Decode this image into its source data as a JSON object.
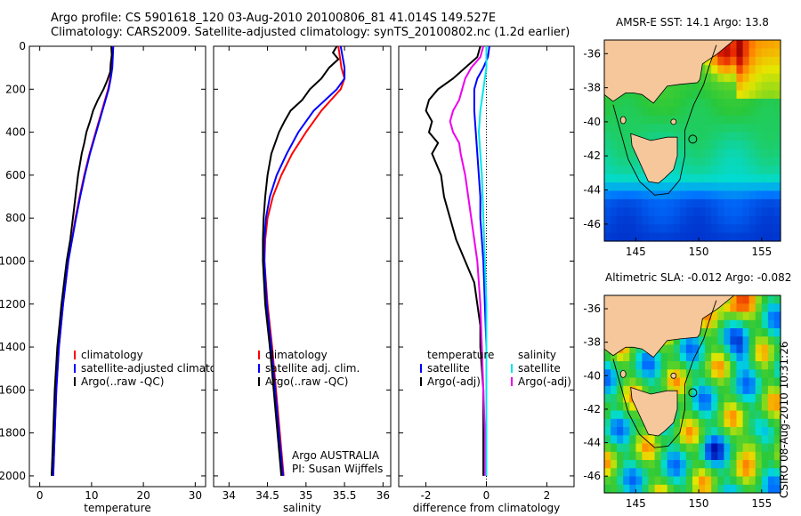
{
  "header": {
    "line1": "Argo profile: CS 5901618_120 03-Aug-2010 20100806_81 41.014S 149.527E",
    "line2": "Climatology: CARS2009. Satellite-adjusted climatology: synTS_20100802.nc (1.2d earlier)"
  },
  "map_titles": {
    "sst": "AMSR-E SST: 14.1 Argo: 13.8",
    "sla": "Altimetric SLA: -0.012 Argo: -0.082"
  },
  "stamp": "CSIRO 08-Aug-2010 10:31:26",
  "colors": {
    "climatology": "#ff0000",
    "satellite": "#0000ff",
    "argo": "#000000",
    "satellite_diff": "#00e5ee",
    "salinity_diff": "#ee00ee",
    "land": "#f5c79b"
  },
  "chart_data": [
    {
      "id": "temperature",
      "type": "line",
      "xlabel": "temperature",
      "xlim": [
        -2,
        32
      ],
      "xticks": [
        0,
        10,
        20,
        30
      ],
      "ylim": [
        2050,
        0
      ],
      "yticks": [
        0,
        200,
        400,
        600,
        800,
        1000,
        1200,
        1400,
        1600,
        1800,
        2000
      ],
      "legend": [
        "climatology",
        "satellite-adjusted climatology",
        "Argo(..raw -QC)"
      ],
      "series": [
        {
          "name": "climatology",
          "color": "climatology",
          "pressure": [
            0,
            100,
            150,
            200,
            300,
            400,
            500,
            600,
            700,
            800,
            1000,
            1200,
            1400,
            1600,
            1800,
            2000
          ],
          "values": [
            14.0,
            13.9,
            13.6,
            13.2,
            12.0,
            10.8,
            9.6,
            8.6,
            7.7,
            6.9,
            5.5,
            4.5,
            3.7,
            3.2,
            2.9,
            2.6
          ]
        },
        {
          "name": "satellite-adjusted climatology",
          "color": "satellite",
          "pressure": [
            0,
            100,
            150,
            200,
            300,
            400,
            500,
            600,
            700,
            800,
            1000,
            1200,
            1400,
            1600,
            1800,
            2000
          ],
          "values": [
            14.2,
            14.0,
            13.7,
            13.3,
            12.1,
            10.9,
            9.7,
            8.7,
            7.8,
            7.0,
            5.5,
            4.5,
            3.7,
            3.2,
            2.9,
            2.6
          ]
        },
        {
          "name": "Argo(..raw -QC)",
          "color": "argo",
          "pressure": [
            0,
            40,
            80,
            120,
            160,
            200,
            250,
            300,
            350,
            400,
            450,
            500,
            600,
            700,
            800,
            900,
            1000,
            1200,
            1400,
            1600,
            1800,
            2000
          ],
          "values": [
            13.8,
            13.9,
            13.7,
            13.6,
            13.0,
            12.3,
            11.2,
            10.3,
            9.7,
            9.0,
            8.6,
            8.1,
            7.4,
            6.9,
            6.4,
            5.9,
            5.2,
            4.2,
            3.4,
            2.9,
            2.6,
            2.3
          ]
        }
      ]
    },
    {
      "id": "salinity",
      "type": "line",
      "xlabel": "salinity",
      "xlim": [
        33.8,
        36.1
      ],
      "xticks": [
        34,
        34.5,
        35,
        35.5,
        36
      ],
      "ylim": [
        2050,
        0
      ],
      "legend": [
        "climatology",
        "satellite adj. clim.",
        "Argo(..raw -QC)"
      ],
      "annotation": [
        "Argo AUSTRALIA",
        "PI: Susan Wijffels"
      ],
      "series": [
        {
          "name": "climatology",
          "color": "climatology",
          "pressure": [
            0,
            100,
            150,
            200,
            300,
            400,
            500,
            600,
            700,
            800,
            900,
            1000,
            1200,
            1400,
            1600,
            1800,
            2000
          ],
          "values": [
            35.42,
            35.46,
            35.5,
            35.45,
            35.2,
            35.0,
            34.82,
            34.68,
            34.57,
            34.5,
            34.47,
            34.46,
            34.5,
            34.56,
            34.61,
            34.66,
            34.71
          ]
        },
        {
          "name": "satellite adj. clim.",
          "color": "satellite",
          "pressure": [
            0,
            100,
            150,
            200,
            300,
            400,
            500,
            600,
            700,
            800,
            900,
            1000,
            1200,
            1400,
            1600,
            1800,
            2000
          ],
          "values": [
            35.45,
            35.5,
            35.5,
            35.4,
            35.1,
            34.9,
            34.75,
            34.62,
            34.53,
            34.48,
            34.46,
            34.46,
            34.49,
            34.55,
            34.6,
            34.65,
            34.7
          ]
        },
        {
          "name": "Argo(..raw -QC)",
          "color": "argo",
          "pressure": [
            0,
            30,
            60,
            100,
            150,
            200,
            250,
            300,
            350,
            400,
            450,
            500,
            600,
            700,
            800,
            900,
            1000,
            1200,
            1400,
            1600,
            1800,
            2000
          ],
          "values": [
            35.4,
            35.35,
            35.42,
            35.3,
            35.2,
            35.05,
            34.95,
            34.8,
            34.72,
            34.65,
            34.6,
            34.55,
            34.5,
            34.47,
            34.45,
            34.44,
            34.44,
            34.47,
            34.53,
            34.58,
            34.63,
            34.68
          ]
        }
      ]
    },
    {
      "id": "difference",
      "type": "line",
      "xlabel": "difference from climatology",
      "xlim": [
        -2.9,
        2.9
      ],
      "xticks": [
        -2,
        0,
        2
      ],
      "ylim": [
        2050,
        0
      ],
      "zero_line": 0,
      "legend_left": [
        "temperature",
        "satellite",
        "Argo(-adj)"
      ],
      "legend_right": [
        "salinity",
        "satellite",
        "Argo(-adj)"
      ],
      "series": [
        {
          "name": "temperature Argo(-adj)",
          "color": "argo",
          "pressure": [
            0,
            50,
            100,
            150,
            200,
            250,
            300,
            350,
            400,
            450,
            500,
            600,
            700,
            800,
            900,
            1000,
            1100,
            1200,
            1300,
            1400,
            1600,
            1800,
            2000
          ],
          "values": [
            -0.2,
            -0.3,
            -0.7,
            -1.1,
            -1.6,
            -1.9,
            -2.0,
            -1.8,
            -1.9,
            -1.6,
            -1.8,
            -1.5,
            -1.4,
            -1.2,
            -1.0,
            -0.7,
            -0.4,
            -0.3,
            -0.2,
            -0.2,
            -0.1,
            -0.1,
            -0.1
          ]
        },
        {
          "name": "temperature satellite",
          "color": "satellite",
          "pressure": [
            0,
            50,
            100,
            150,
            200,
            300,
            400,
            500,
            600,
            700,
            800,
            900,
            1000,
            1200,
            1400,
            1600,
            1800,
            2000
          ],
          "values": [
            0.1,
            0.05,
            -0.1,
            -0.3,
            -0.4,
            -0.4,
            -0.35,
            -0.3,
            -0.25,
            -0.2,
            -0.2,
            -0.15,
            -0.1,
            -0.05,
            0.0,
            0.0,
            0.0,
            0.0
          ]
        },
        {
          "name": "salinity Argo(-adj)",
          "color": "salinity_diff",
          "pressure": [
            0,
            50,
            100,
            150,
            200,
            250,
            300,
            350,
            400,
            450,
            500,
            600,
            700,
            800,
            900,
            1000,
            1200,
            1400,
            1600,
            1800,
            2000
          ],
          "values": [
            -0.1,
            -0.2,
            -0.5,
            -0.7,
            -0.8,
            -0.9,
            -1.1,
            -1.2,
            -1.1,
            -0.9,
            -0.85,
            -0.7,
            -0.6,
            -0.5,
            -0.4,
            -0.3,
            -0.2,
            -0.15,
            -0.1,
            -0.05,
            -0.05
          ]
        },
        {
          "name": "salinity satellite",
          "color": "satellite_diff",
          "pressure": [
            0,
            50,
            100,
            200,
            300,
            400,
            500,
            600,
            800,
            1000,
            1200,
            1400,
            1600,
            1800,
            2000
          ],
          "values": [
            0.0,
            0.0,
            0.0,
            -0.1,
            -0.2,
            -0.25,
            -0.2,
            -0.15,
            -0.1,
            -0.05,
            0.0,
            0.0,
            0.0,
            0.0,
            0.0
          ]
        }
      ]
    },
    {
      "id": "sst_map",
      "type": "heatmap",
      "title": "AMSR-E SST: 14.1 Argo: 13.8",
      "xlim": [
        142.5,
        156.5
      ],
      "ylim": [
        -47,
        -35.2
      ],
      "xticks": [
        145,
        150,
        155
      ],
      "yticks": [
        -36,
        -38,
        -40,
        -42,
        -44,
        -46
      ],
      "argo_position": {
        "lon": 149.527,
        "lat": -41.014
      }
    },
    {
      "id": "sla_map",
      "type": "heatmap",
      "title": "Altimetric SLA: -0.012 Argo: -0.082",
      "xlim": [
        142.5,
        156.5
      ],
      "ylim": [
        -47,
        -35.2
      ],
      "xticks": [
        145,
        150,
        155
      ],
      "yticks": [
        -36,
        -38,
        -40,
        -42,
        -44,
        -46
      ],
      "argo_position": {
        "lon": 149.527,
        "lat": -41.014
      }
    }
  ]
}
